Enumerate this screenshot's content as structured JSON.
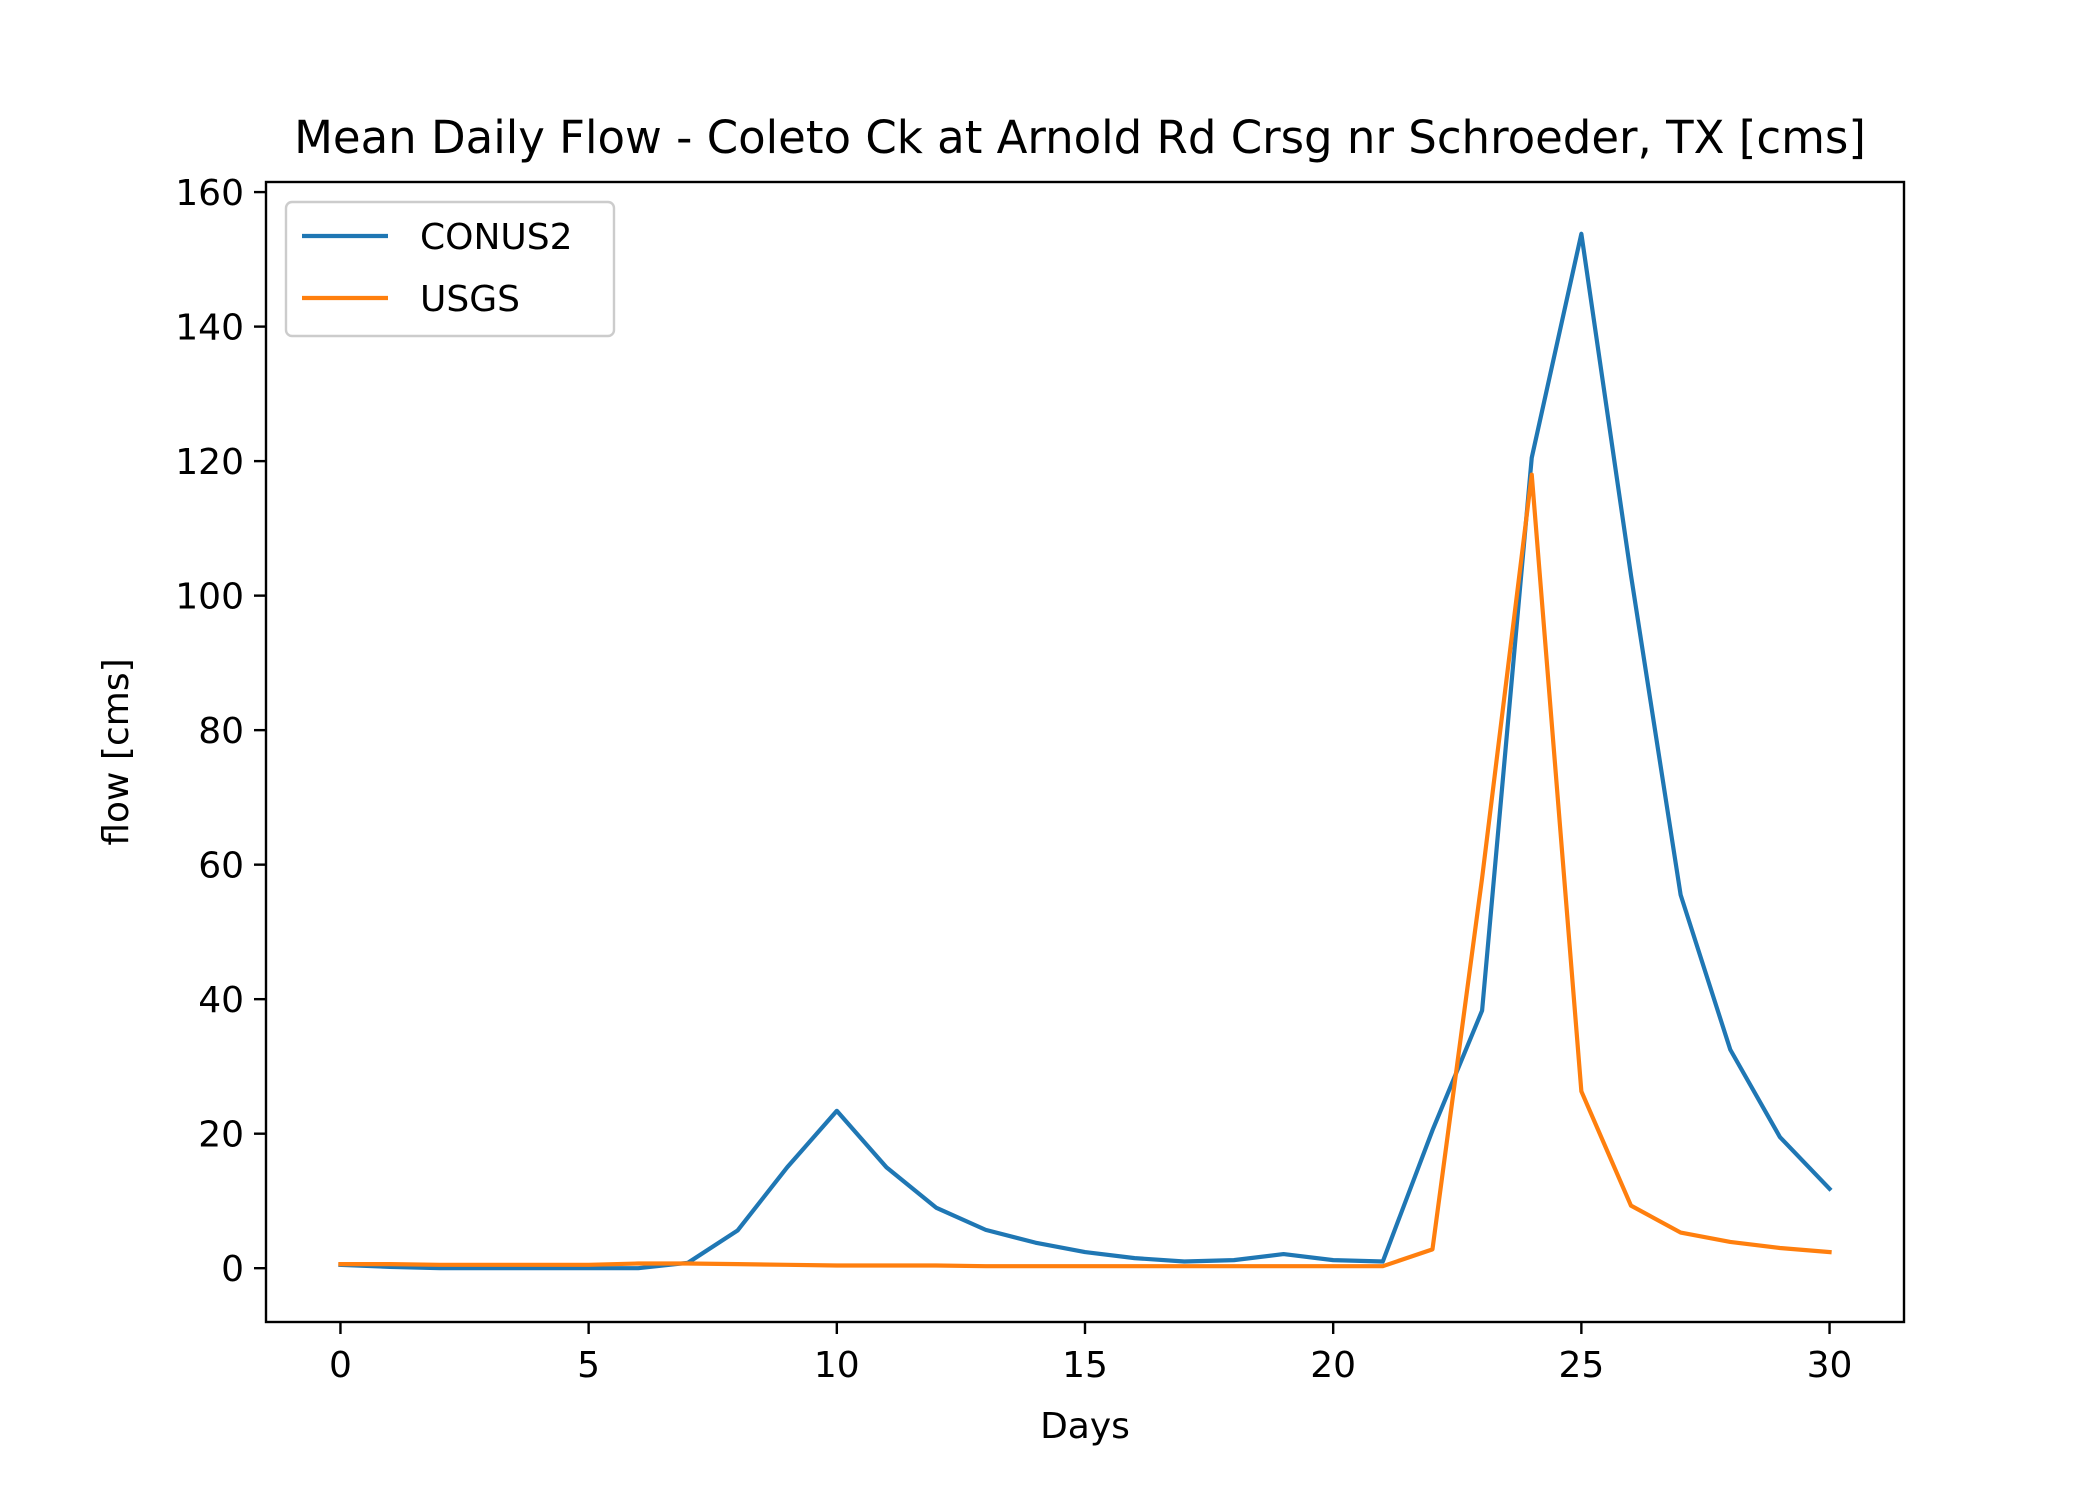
{
  "chart_data": {
    "type": "line",
    "title": "Mean Daily Flow - Coleto Ck at Arnold Rd Crsg nr Schroeder, TX [cms]",
    "xlabel": "Days",
    "ylabel": "flow [cms]",
    "xlim": [
      -1.5,
      31.5
    ],
    "ylim": [
      -8,
      161.5
    ],
    "xticks": [
      0,
      5,
      10,
      15,
      20,
      25,
      30
    ],
    "yticks": [
      0,
      20,
      40,
      60,
      80,
      100,
      120,
      140,
      160
    ],
    "grid": false,
    "legend_position": "top-left",
    "x": [
      0,
      1,
      2,
      3,
      4,
      5,
      6,
      7,
      8,
      9,
      10,
      11,
      12,
      13,
      14,
      15,
      16,
      17,
      18,
      19,
      20,
      21,
      22,
      23,
      24,
      25,
      26,
      27,
      28,
      29,
      30
    ],
    "series": [
      {
        "name": "CONUS2",
        "color": "#1f77b4",
        "values": [
          0.5,
          0.2,
          0.0,
          0.0,
          0.0,
          0.0,
          0.0,
          0.8,
          5.6,
          15.0,
          23.4,
          15.0,
          9.0,
          5.7,
          3.8,
          2.4,
          1.5,
          1.0,
          1.2,
          2.1,
          1.2,
          1.0,
          20.5,
          38.3,
          120.5,
          153.8,
          103.0,
          55.5,
          32.5,
          19.5,
          11.8
        ]
      },
      {
        "name": "USGS",
        "color": "#ff7f0e",
        "values": [
          0.6,
          0.6,
          0.5,
          0.5,
          0.5,
          0.5,
          0.7,
          0.7,
          0.6,
          0.5,
          0.4,
          0.4,
          0.4,
          0.3,
          0.3,
          0.3,
          0.3,
          0.3,
          0.3,
          0.3,
          0.3,
          0.3,
          2.8,
          58.0,
          118.0,
          26.3,
          9.3,
          5.3,
          3.9,
          3.0,
          2.4
        ]
      }
    ]
  }
}
